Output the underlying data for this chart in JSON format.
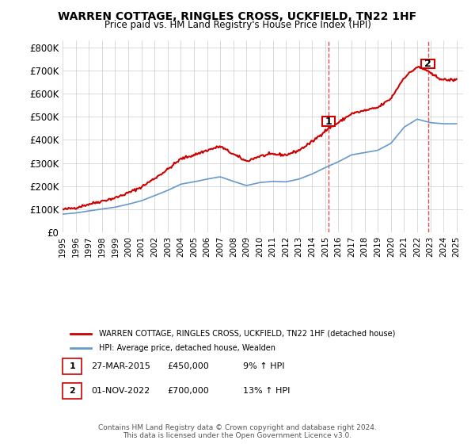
{
  "title": "WARREN COTTAGE, RINGLES CROSS, UCKFIELD, TN22 1HF",
  "subtitle": "Price paid vs. HM Land Registry's House Price Index (HPI)",
  "legend_line1": "WARREN COTTAGE, RINGLES CROSS, UCKFIELD, TN22 1HF (detached house)",
  "legend_line2": "HPI: Average price, detached house, Wealden",
  "annotation1_label": "1",
  "annotation1_date": "27-MAR-2015",
  "annotation1_price": "£450,000",
  "annotation1_hpi": "9% ↑ HPI",
  "annotation2_label": "2",
  "annotation2_date": "01-NOV-2022",
  "annotation2_price": "£700,000",
  "annotation2_hpi": "13% ↑ HPI",
  "footer": "Contains HM Land Registry data © Crown copyright and database right 2024.\nThis data is licensed under the Open Government Licence v3.0.",
  "red_color": "#cc0000",
  "blue_color": "#6699cc",
  "dashed_color": "#cc0000",
  "background_color": "#ffffff",
  "grid_color": "#cccccc",
  "ylim": [
    0,
    830000
  ],
  "yticks": [
    0,
    100000,
    200000,
    300000,
    400000,
    500000,
    600000,
    700000,
    800000
  ],
  "ytick_labels": [
    "£0",
    "£100K",
    "£200K",
    "£300K",
    "£400K",
    "£500K",
    "£600K",
    "£700K",
    "£800K"
  ],
  "hpi_years": [
    1995,
    1996,
    1997,
    1998,
    1999,
    2000,
    2001,
    2002,
    2003,
    2004,
    2005,
    2006,
    2007,
    2008,
    2009,
    2010,
    2011,
    2012,
    2013,
    2014,
    2015,
    2016,
    2017,
    2018,
    2019,
    2020,
    2021,
    2022,
    2023,
    2024
  ],
  "hpi_values": [
    78000,
    83000,
    92000,
    100000,
    108000,
    121000,
    136000,
    158000,
    181000,
    208000,
    218000,
    230000,
    240000,
    220000,
    202000,
    215000,
    220000,
    218000,
    230000,
    252000,
    280000,
    305000,
    335000,
    345000,
    355000,
    385000,
    455000,
    490000,
    475000,
    470000
  ],
  "red_points_x": [
    1995.5,
    2015.25,
    2022.83
  ],
  "red_points_y": [
    97500,
    450000,
    700000
  ],
  "sale1_x": 2015.25,
  "sale1_y": 450000,
  "sale2_x": 2022.83,
  "sale2_y": 700000,
  "xtick_years": [
    1995,
    1996,
    1997,
    1998,
    1999,
    2000,
    2001,
    2002,
    2003,
    2004,
    2005,
    2006,
    2007,
    2008,
    2009,
    2010,
    2011,
    2012,
    2013,
    2014,
    2015,
    2016,
    2017,
    2018,
    2019,
    2020,
    2021,
    2022,
    2023,
    2024,
    2025
  ]
}
